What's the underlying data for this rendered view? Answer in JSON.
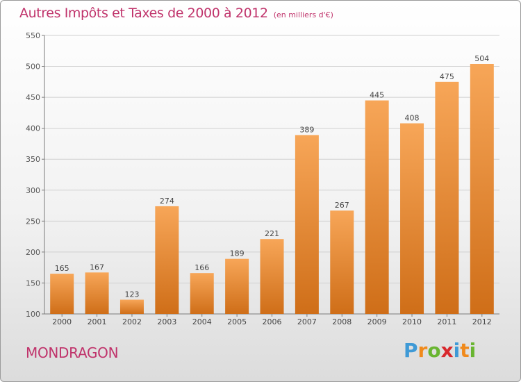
{
  "title": "Autres Impôts et Taxes de 2000 à 2012",
  "unit": "(en milliers d'€)",
  "location": "MONDRAGON",
  "brand": "Proxiti",
  "brand_letters": [
    {
      "ch": "P",
      "color": "#3f9ad6"
    },
    {
      "ch": "r",
      "color": "#f08a1c"
    },
    {
      "ch": "o",
      "color": "#69b531"
    },
    {
      "ch": "x",
      "color": "#d8282d"
    },
    {
      "ch": "i",
      "color": "#3f9ad6"
    },
    {
      "ch": "t",
      "color": "#f08a1c"
    },
    {
      "ch": "i",
      "color": "#69b531"
    }
  ],
  "colors": {
    "bar_top": "#f7a658",
    "bar_bottom": "#cf6e18",
    "accent": "#c0336b",
    "grid": "#d0d0d0",
    "axis": "#7a7a7a"
  },
  "chart_data": {
    "type": "bar",
    "categories": [
      "2000",
      "2001",
      "2002",
      "2003",
      "2004",
      "2005",
      "2006",
      "2007",
      "2008",
      "2009",
      "2010",
      "2011",
      "2012"
    ],
    "values": [
      165,
      167,
      123,
      274,
      166,
      189,
      221,
      389,
      267,
      445,
      408,
      475,
      504
    ],
    "ylim": [
      100,
      550
    ],
    "yticks": [
      100,
      150,
      200,
      250,
      300,
      350,
      400,
      450,
      500,
      550
    ],
    "grid": true,
    "legend": "none"
  }
}
